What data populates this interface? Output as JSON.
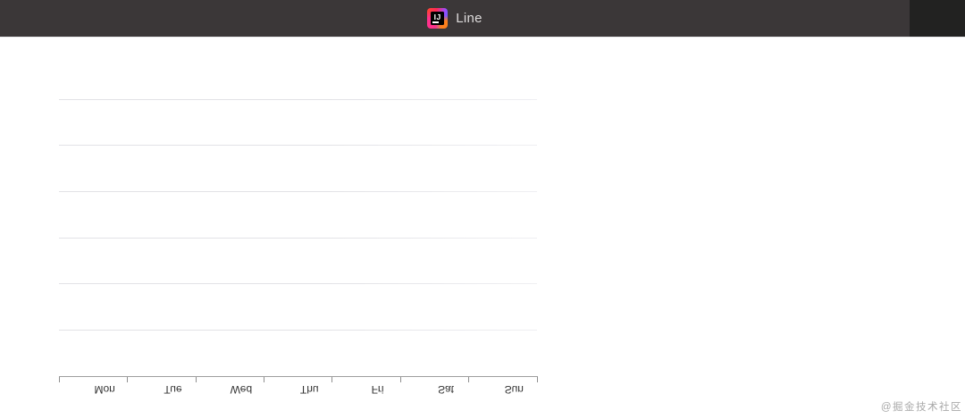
{
  "titlebar": {
    "title": "Line",
    "icon": "intellij-idea-logo",
    "icon_monogram": "IJ"
  },
  "watermark": {
    "text": "@掘金技术社区"
  },
  "chart_data": {
    "type": "line",
    "title": "",
    "categories": [
      "Mon",
      "Tue",
      "Wed",
      "Thu",
      "Fri",
      "Sat",
      "Sun"
    ],
    "series": [],
    "xlabel": "",
    "ylabel": "",
    "y_tick_labels_visible": false,
    "gridline_count": 6,
    "grid": "horizontal gridlines on",
    "legend": "none",
    "x_axis_position": "bottom",
    "x_tick_count": 8,
    "x_labels_rendered": "upside-down (vertically flipped)"
  },
  "colors": {
    "titlebar_bg": "#3b3738",
    "titlebar_right_bg": "#222221",
    "title_text": "#dedcdc",
    "gridline": "#e2e2e6",
    "axis_line": "#9e9e9e",
    "tick": "#8f8f8f",
    "x_label_text": "#333333",
    "watermark_text": "#a9a9a9",
    "canvas_bg": "#ffffff"
  }
}
